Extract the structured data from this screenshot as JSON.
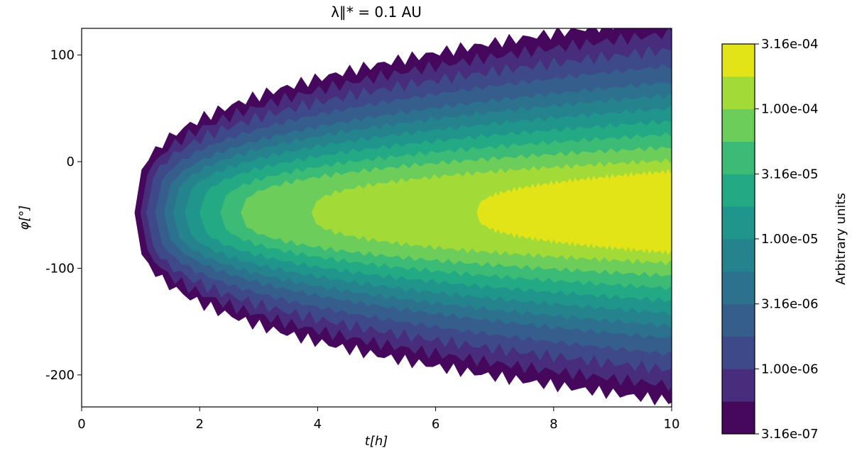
{
  "chart_data": {
    "type": "contourf",
    "title": "λ∥* = 0.1 AU",
    "x_label": "t[h]",
    "y_label": "φ[°]",
    "xlim": [
      0,
      10
    ],
    "xticks": [
      0,
      2,
      4,
      6,
      8,
      10
    ],
    "ylim": [
      -230,
      125
    ],
    "yticks": [
      -200,
      -100,
      0,
      100
    ],
    "colorbar": {
      "label": "Arbitrary units",
      "log_scale": true,
      "levels": [
        3.16e-07,
        5.62e-07,
        1e-06,
        1.78e-06,
        3.16e-06,
        5.62e-06,
        1e-05,
        1.78e-05,
        3.16e-05,
        5.62e-05,
        0.0001,
        0.000178,
        0.000316
      ],
      "ticks": [
        {
          "value": 3.16e-07,
          "label": "3.16e-07"
        },
        {
          "value": 1e-06,
          "label": "1.00e-06"
        },
        {
          "value": 3.16e-06,
          "label": "3.16e-06"
        },
        {
          "value": 1e-05,
          "label": "1.00e-05"
        },
        {
          "value": 3.16e-05,
          "label": "3.16e-05"
        },
        {
          "value": 0.0001,
          "label": "1.00e-04"
        },
        {
          "value": 0.000316,
          "label": "3.16e-04"
        }
      ],
      "colors": [
        "#46085c",
        "#472d7b",
        "#3e4989",
        "#355e8d",
        "#2c718e",
        "#25838e",
        "#1f958b",
        "#23a983",
        "#3bbb75",
        "#6ccd5a",
        "#a2da37",
        "#e3e418"
      ]
    }
  }
}
